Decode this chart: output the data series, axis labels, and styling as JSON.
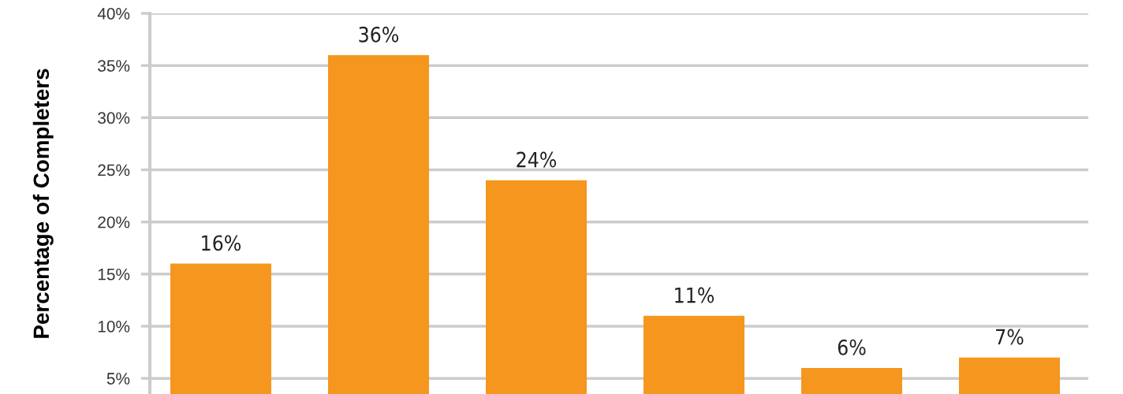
{
  "chart_data": {
    "type": "bar",
    "ylabel": "Percentage of Completers",
    "categories": [
      null,
      null,
      null,
      null,
      null,
      null
    ],
    "values": [
      16,
      36,
      24,
      11,
      6,
      7
    ],
    "value_labels": [
      "16%",
      "36%",
      "24%",
      "11%",
      "6%",
      "7%"
    ],
    "color": "#f5961e",
    "ylim": [
      3.5,
      40
    ],
    "yticks": [
      {
        "value": 5,
        "label": "5%"
      },
      {
        "value": 10,
        "label": "10%"
      },
      {
        "value": 15,
        "label": "15%"
      },
      {
        "value": 20,
        "label": "20%"
      },
      {
        "value": 25,
        "label": "25%"
      },
      {
        "value": 30,
        "label": "30%"
      },
      {
        "value": 35,
        "label": "35%"
      },
      {
        "value": 40,
        "label": "40%"
      }
    ],
    "grid": "y",
    "legend": false
  }
}
